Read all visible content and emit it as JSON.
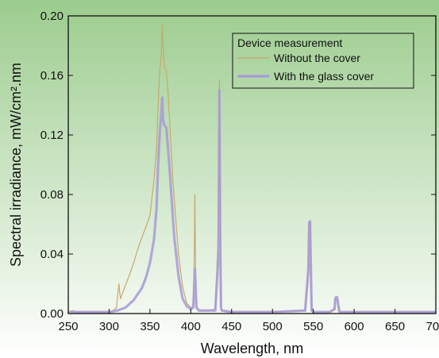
{
  "chart_data": {
    "type": "line",
    "title": "",
    "xlabel": "Wavelength, nm",
    "ylabel": "Spectral irradiance, mW/cm².nm",
    "xlim": [
      250,
      700
    ],
    "ylim": [
      0,
      0.2
    ],
    "x_ticks": [
      "250",
      "300",
      "350",
      "400",
      "450",
      "500",
      "550",
      "600",
      "650",
      "700"
    ],
    "y_ticks": [
      "0.00",
      "0.04",
      "0.08",
      "0.12",
      "0.16",
      "0.20"
    ],
    "legend": {
      "title": "Device measurement",
      "position": "top-right"
    },
    "background": {
      "top": "#9ccc8e",
      "bottom": "#ffffff"
    },
    "series": [
      {
        "name": "Without the cover",
        "color": "#c9a86a",
        "x": [
          250,
          255,
          260,
          280,
          300,
          305,
          309,
          311,
          312,
          313,
          314,
          316,
          320,
          325,
          330,
          335,
          340,
          345,
          350,
          355,
          358,
          360,
          362,
          364,
          365,
          366,
          367,
          368,
          370,
          372,
          375,
          378,
          380,
          385,
          390,
          395,
          400,
          403,
          404,
          405,
          406,
          407,
          410,
          420,
          430,
          434,
          435,
          436,
          437,
          438,
          450,
          500,
          540,
          544,
          545,
          546,
          547,
          548,
          550,
          570,
          576,
          577,
          578,
          579,
          580,
          582,
          600,
          650,
          700
        ],
        "y": [
          0.001,
          0.002,
          0.001,
          0.001,
          0.001,
          0.002,
          0.004,
          0.015,
          0.02,
          0.014,
          0.01,
          0.013,
          0.019,
          0.026,
          0.034,
          0.043,
          0.051,
          0.058,
          0.066,
          0.09,
          0.11,
          0.14,
          0.163,
          0.175,
          0.194,
          0.18,
          0.171,
          0.165,
          0.163,
          0.15,
          0.12,
          0.09,
          0.075,
          0.04,
          0.018,
          0.007,
          0.004,
          0.005,
          0.03,
          0.08,
          0.02,
          0.005,
          0.002,
          0.002,
          0.003,
          0.06,
          0.157,
          0.07,
          0.005,
          0.002,
          0.001,
          0.001,
          0.002,
          0.03,
          0.061,
          0.062,
          0.03,
          0.002,
          0.001,
          0.001,
          0.003,
          0.01,
          0.011,
          0.011,
          0.008,
          0.001,
          0.001,
          0.001,
          0.001
        ]
      },
      {
        "name": "With the glass cover",
        "color": "#a79ad6",
        "x": [
          250,
          280,
          300,
          310,
          320,
          330,
          340,
          345,
          350,
          355,
          358,
          360,
          362,
          364,
          365,
          366,
          367,
          368,
          370,
          372,
          375,
          378,
          380,
          385,
          390,
          395,
          400,
          403,
          404,
          405,
          406,
          407,
          410,
          420,
          430,
          434,
          435,
          436,
          437,
          438,
          450,
          500,
          540,
          544,
          545,
          546,
          547,
          548,
          550,
          570,
          576,
          577,
          578,
          579,
          580,
          582,
          600,
          650,
          700
        ],
        "y": [
          0.001,
          0.001,
          0.001,
          0.002,
          0.004,
          0.009,
          0.017,
          0.024,
          0.034,
          0.05,
          0.07,
          0.1,
          0.122,
          0.135,
          0.145,
          0.13,
          0.128,
          0.126,
          0.125,
          0.112,
          0.09,
          0.065,
          0.05,
          0.025,
          0.01,
          0.005,
          0.003,
          0.004,
          0.015,
          0.03,
          0.015,
          0.004,
          0.002,
          0.002,
          0.002,
          0.04,
          0.15,
          0.05,
          0.004,
          0.002,
          0.001,
          0.001,
          0.002,
          0.03,
          0.061,
          0.062,
          0.03,
          0.002,
          0.001,
          0.001,
          0.003,
          0.01,
          0.011,
          0.011,
          0.008,
          0.001,
          0.001,
          0.001,
          0.001
        ]
      }
    ]
  }
}
